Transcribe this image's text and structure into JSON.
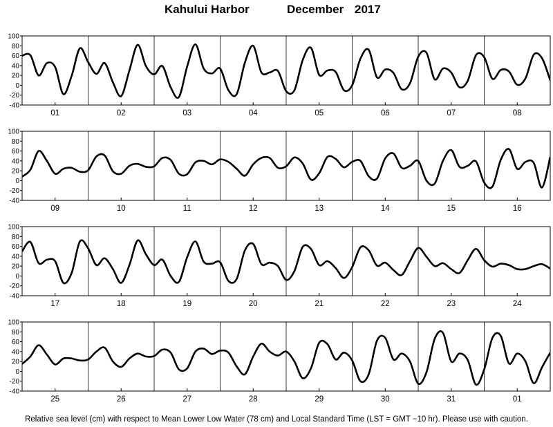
{
  "header": {
    "station": "Kahului Harbor",
    "month": "December",
    "year": "2017"
  },
  "footer": {
    "note": "Relative sea level (cm) with respect to Mean Lower Low Water (78 cm) and Local Standard Time (LST = GMT −10 hr). Please use with caution."
  },
  "chart_data": {
    "type": "line",
    "title": "Kahului Harbor  December  2017",
    "ylabel": "",
    "xlabel": "",
    "ylim": [
      -40,
      100
    ],
    "yticks": [
      -40,
      -20,
      0,
      20,
      40,
      60,
      80,
      100
    ],
    "grid": "vertical day dividers",
    "line_color": "#000000",
    "panels": [
      {
        "day_labels": [
          "01",
          "02",
          "03",
          "04",
          "05",
          "06",
          "07",
          "08"
        ],
        "hours": [
          0,
          3,
          6,
          9,
          12,
          15,
          18,
          21,
          24,
          27,
          30,
          33,
          36,
          39,
          42,
          45,
          48,
          51,
          54,
          57,
          60,
          63,
          66,
          69,
          72,
          75,
          78,
          81,
          84,
          87,
          90,
          93,
          96,
          99,
          102,
          105,
          108,
          111,
          114,
          117,
          120,
          123,
          126,
          129,
          132,
          135,
          138,
          141,
          144,
          147,
          150,
          153,
          156,
          159,
          162,
          165,
          168,
          171,
          174,
          177,
          180,
          183,
          186,
          189,
          192
        ],
        "values": [
          60,
          61,
          20,
          45,
          37,
          -18,
          19,
          75,
          47,
          23,
          45,
          6,
          -22,
          30,
          82,
          39,
          22,
          39,
          -4,
          -24,
          38,
          83,
          34,
          24,
          34,
          -10,
          -18,
          46,
          80,
          26,
          26,
          29,
          -12,
          -10,
          51,
          76,
          21,
          30,
          27,
          -10,
          0,
          54,
          72,
          16,
          32,
          25,
          -8,
          4,
          58,
          66,
          12,
          34,
          26,
          -4,
          9,
          61,
          57,
          13,
          31,
          28,
          1,
          14,
          62,
          55,
          10
        ]
      },
      {
        "day_labels": [
          "09",
          "10",
          "11",
          "12",
          "13",
          "14",
          "15",
          "16"
        ],
        "hours": [
          0,
          3,
          6,
          9,
          12,
          15,
          18,
          21,
          24,
          27,
          30,
          33,
          36,
          39,
          42,
          45,
          48,
          51,
          54,
          57,
          60,
          63,
          66,
          69,
          72,
          75,
          78,
          81,
          84,
          87,
          90,
          93,
          96,
          99,
          102,
          105,
          108,
          111,
          114,
          117,
          120,
          123,
          126,
          129,
          132,
          135,
          138,
          141,
          144,
          147,
          150,
          153,
          156,
          159,
          162,
          165,
          168,
          171,
          174,
          177,
          180,
          183,
          186,
          189,
          192
        ],
        "values": [
          8,
          22,
          60,
          40,
          14,
          24,
          26,
          18,
          21,
          49,
          51,
          19,
          14,
          30,
          34,
          28,
          29,
          46,
          42,
          14,
          13,
          37,
          40,
          33,
          43,
          38,
          24,
          10,
          33,
          46,
          46,
          26,
          29,
          47,
          35,
          2,
          15,
          48,
          44,
          27,
          38,
          40,
          9,
          4,
          45,
          55,
          26,
          30,
          40,
          0,
          -6,
          40,
          62,
          28,
          30,
          39,
          -4,
          -12,
          42,
          64,
          24,
          38,
          36,
          -14,
          48
        ]
      },
      {
        "day_labels": [
          "17",
          "18",
          "19",
          "20",
          "21",
          "22",
          "23",
          "24"
        ],
        "hours": [
          0,
          3,
          6,
          9,
          12,
          15,
          18,
          21,
          24,
          27,
          30,
          33,
          36,
          39,
          42,
          45,
          48,
          51,
          54,
          57,
          60,
          63,
          66,
          69,
          72,
          75,
          78,
          81,
          84,
          87,
          90,
          93,
          96,
          99,
          102,
          105,
          108,
          111,
          114,
          117,
          120,
          123,
          126,
          129,
          132,
          135,
          138,
          141,
          144,
          147,
          150,
          153,
          156,
          159,
          162,
          165,
          168,
          171,
          174,
          177,
          180,
          183,
          186,
          189,
          192
        ],
        "values": [
          50,
          69,
          26,
          33,
          30,
          -14,
          6,
          70,
          56,
          22,
          36,
          14,
          -14,
          22,
          72,
          44,
          22,
          33,
          0,
          -12,
          38,
          70,
          29,
          25,
          28,
          -10,
          -6,
          52,
          65,
          24,
          27,
          20,
          -8,
          10,
          59,
          55,
          22,
          30,
          16,
          -4,
          18,
          58,
          52,
          21,
          27,
          12,
          2,
          30,
          57,
          39,
          20,
          26,
          14,
          6,
          32,
          55,
          32,
          19,
          25,
          22,
          14,
          14,
          20,
          24,
          15
        ]
      },
      {
        "day_labels": [
          "25",
          "26",
          "27",
          "28",
          "29",
          "30",
          "31",
          "01"
        ],
        "hours": [
          0,
          3,
          6,
          9,
          12,
          15,
          18,
          21,
          24,
          27,
          30,
          33,
          36,
          39,
          42,
          45,
          48,
          51,
          54,
          57,
          60,
          63,
          66,
          69,
          72,
          75,
          78,
          81,
          84,
          87,
          90,
          93,
          96,
          99,
          102,
          105,
          108,
          111,
          114,
          117,
          120,
          123,
          126,
          129,
          132,
          135,
          138,
          141,
          144,
          147,
          150,
          153,
          156,
          159,
          162,
          165,
          168,
          171,
          174,
          177,
          180,
          183,
          186,
          189,
          192
        ],
        "values": [
          15,
          30,
          53,
          34,
          14,
          26,
          26,
          22,
          24,
          40,
          48,
          20,
          9,
          26,
          36,
          30,
          31,
          44,
          38,
          4,
          6,
          40,
          46,
          35,
          42,
          38,
          10,
          -6,
          30,
          56,
          40,
          32,
          40,
          20,
          -14,
          6,
          58,
          55,
          24,
          38,
          22,
          -20,
          -6,
          62,
          68,
          24,
          36,
          20,
          -25,
          -2,
          66,
          78,
          20,
          36,
          23,
          -27,
          4,
          68,
          72,
          16,
          36,
          20,
          -24,
          8,
          38
        ]
      }
    ]
  }
}
